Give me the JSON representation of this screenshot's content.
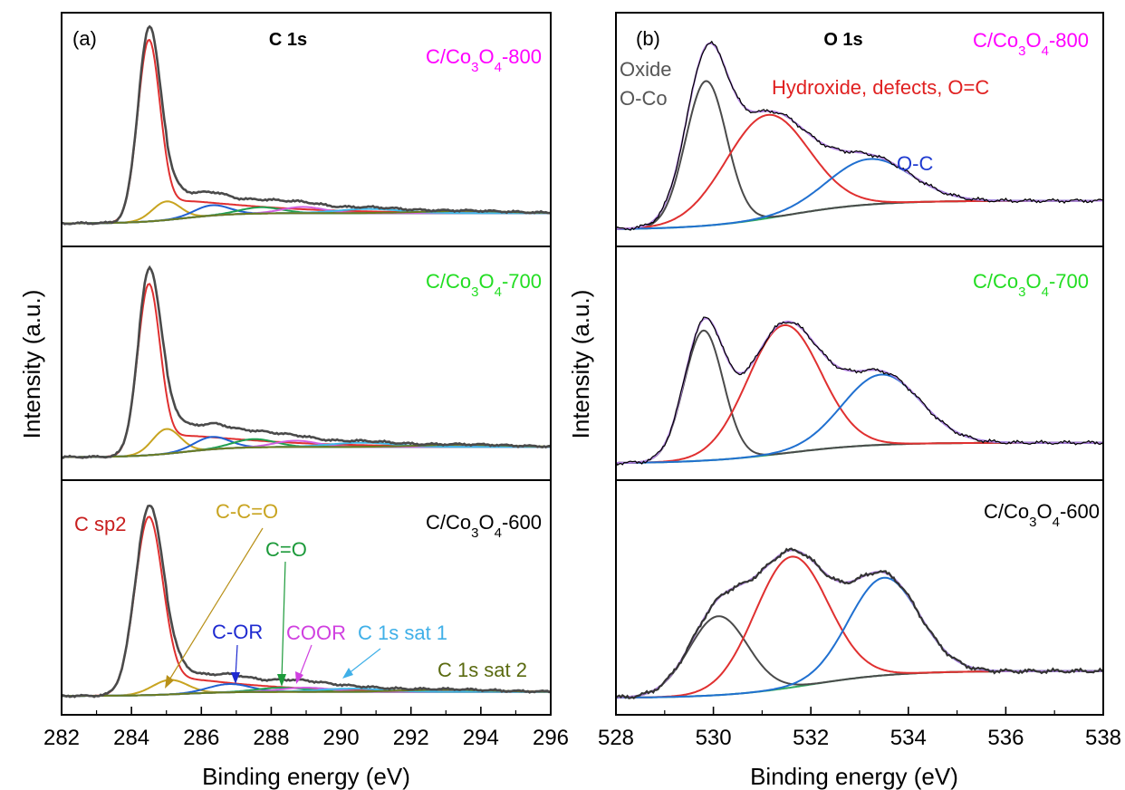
{
  "figure": {
    "panel_a": {
      "label": "(a)",
      "title": "C 1s",
      "xlabel": "Binding energy (eV)",
      "ylabel": "Intensity (a.u.)",
      "xticks": [
        "282",
        "284",
        "286",
        "288",
        "290",
        "292",
        "294",
        "296"
      ],
      "samples": [
        {
          "base": "C/Co",
          "s1": "3",
          "mid": "O",
          "s2": "4",
          "tail": "-800",
          "color": "#ff00ff"
        },
        {
          "base": "C/Co",
          "s1": "3",
          "mid": "O",
          "s2": "4",
          "tail": "-700",
          "color": "#22dd22"
        },
        {
          "base": "C/Co",
          "s1": "3",
          "mid": "O",
          "s2": "4",
          "tail": "-600",
          "color": "#000000"
        }
      ],
      "annotations": {
        "c_sp2": "C sp2",
        "c_c_o": "C-C=O",
        "c_o": "C=O",
        "c_or": "C-OR",
        "coor": "COOR",
        "sat1": "C 1s sat 1",
        "sat2": "C 1s sat 2"
      }
    },
    "panel_b": {
      "label": "(b)",
      "title": "O 1s",
      "xlabel": "Binding energy (eV)",
      "ylabel": "Intensity (a.u.)",
      "xticks": [
        "528",
        "530",
        "532",
        "534",
        "536",
        "538"
      ],
      "samples": [
        {
          "base": "C/Co",
          "s1": "3",
          "mid": "O",
          "s2": "4",
          "tail": "-800",
          "color": "#ff00ff"
        },
        {
          "base": "C/Co",
          "s1": "3",
          "mid": "O",
          "s2": "4",
          "tail": "-700",
          "color": "#22dd22"
        },
        {
          "base": "C/Co",
          "s1": "3",
          "mid": "O",
          "s2": "4",
          "tail": "-600",
          "color": "#000000"
        }
      ],
      "annotations": {
        "oxide": "Oxide",
        "o_co": "O-Co",
        "hydroxide": "Hydroxide, defects, O=C",
        "o_c": "O-C"
      }
    }
  },
  "colors": {
    "envelope": "#4a4a4a",
    "c_sp2": "#e03030",
    "c_c_o": "#c8a420",
    "c_or": "#2060d0",
    "c_o": "#20a050",
    "coor": "#d060e0",
    "sat1": "#40b8e8",
    "sat2": "#6a7a20",
    "background": "#6a7a20",
    "o_oxide": "#4a4a4a",
    "o_hydroxide": "#e03030",
    "o_oc": "#2070d0",
    "o_background": "#30a860",
    "o_fit_envelope": "#b080e0",
    "o_raw": "#000000"
  },
  "chart_data": [
    {
      "type": "line",
      "title": "C 1s",
      "xlabel": "Binding energy (eV)",
      "ylabel": "Intensity (a.u.)",
      "xlim": [
        282,
        296
      ],
      "xticks": [
        282,
        284,
        286,
        288,
        290,
        292,
        294,
        296
      ],
      "panels": [
        {
          "sample": "C/Co3O4-800",
          "baseline": [
            0.05,
            0.1
          ],
          "components": [
            {
              "name": "C sp2",
              "center": 284.5,
              "height": 0.88,
              "width": 0.32,
              "tail": 0.16
            },
            {
              "name": "C-C=O",
              "center": 285.0,
              "height": 0.09,
              "width": 0.4
            },
            {
              "name": "C-OR",
              "center": 286.3,
              "height": 0.05,
              "width": 0.5
            },
            {
              "name": "C=O",
              "center": 287.7,
              "height": 0.03,
              "width": 0.6
            },
            {
              "name": "COOR",
              "center": 288.9,
              "height": 0.03,
              "width": 0.6
            },
            {
              "name": "C 1s sat 1",
              "center": 290.8,
              "height": 0.02,
              "width": 0.9
            },
            {
              "name": "C 1s sat 2",
              "center": 293.5,
              "height": 0.01,
              "width": 1.2
            }
          ]
        },
        {
          "sample": "C/Co3O4-700",
          "baseline": [
            0.05,
            0.1
          ],
          "components": [
            {
              "name": "C sp2",
              "center": 284.5,
              "height": 0.83,
              "width": 0.32,
              "tail": 0.16
            },
            {
              "name": "C-C=O",
              "center": 285.0,
              "height": 0.12,
              "width": 0.4
            },
            {
              "name": "C-OR",
              "center": 286.3,
              "height": 0.06,
              "width": 0.5
            },
            {
              "name": "C=O",
              "center": 287.5,
              "height": 0.04,
              "width": 0.6
            },
            {
              "name": "COOR",
              "center": 288.7,
              "height": 0.03,
              "width": 0.6
            },
            {
              "name": "C 1s sat 1",
              "center": 290.6,
              "height": 0.02,
              "width": 0.9
            },
            {
              "name": "C 1s sat 2",
              "center": 293.5,
              "height": 0.01,
              "width": 1.2
            }
          ]
        },
        {
          "sample": "C/Co3O4-600",
          "baseline": [
            0.03,
            0.05
          ],
          "components": [
            {
              "name": "C sp2",
              "center": 284.5,
              "height": 0.86,
              "width": 0.4,
              "tail": 0.15
            },
            {
              "name": "C-C=O",
              "center": 285.1,
              "height": 0.07,
              "width": 0.5
            },
            {
              "name": "C-OR",
              "center": 286.8,
              "height": 0.04,
              "width": 0.6
            },
            {
              "name": "C=O",
              "center": 288.3,
              "height": 0.02,
              "width": 0.7
            },
            {
              "name": "COOR",
              "center": 289.0,
              "height": 0.02,
              "width": 0.7
            },
            {
              "name": "C 1s sat 1",
              "center": 290.3,
              "height": 0.015,
              "width": 0.9
            },
            {
              "name": "C 1s sat 2",
              "center": 293.0,
              "height": 0.01,
              "width": 1.2
            }
          ]
        }
      ]
    },
    {
      "type": "line",
      "title": "O 1s",
      "xlabel": "Binding energy (eV)",
      "ylabel": "Intensity (a.u.)",
      "xlim": [
        528,
        538
      ],
      "xticks": [
        528,
        530,
        532,
        534,
        536,
        538
      ],
      "panels": [
        {
          "sample": "C/Co3O4-800",
          "background": {
            "start": 0.02,
            "end": 0.16,
            "center": 531.5,
            "width": 0.9
          },
          "components": [
            {
              "name": "Oxide O-Co",
              "center": 529.85,
              "height": 0.7,
              "width": 0.42
            },
            {
              "name": "Hydroxide, defects, O=C",
              "center": 531.1,
              "height": 0.5,
              "width": 0.85
            },
            {
              "name": "O-C",
              "center": 533.2,
              "height": 0.22,
              "width": 0.85
            }
          ]
        },
        {
          "sample": "C/Co3O4-700",
          "background": {
            "start": 0.02,
            "end": 0.12,
            "center": 531.5,
            "width": 0.9
          },
          "components": [
            {
              "name": "Oxide O-Co",
              "center": 529.8,
              "height": 0.63,
              "width": 0.4
            },
            {
              "name": "Hydroxide, defects, O=C",
              "center": 531.45,
              "height": 0.62,
              "width": 0.75
            },
            {
              "name": "O-C",
              "center": 533.45,
              "height": 0.34,
              "width": 0.8
            }
          ]
        },
        {
          "sample": "C/Co3O4-600",
          "background": {
            "start": 0.02,
            "end": 0.15,
            "center": 532.0,
            "width": 0.9
          },
          "components": [
            {
              "name": "Oxide O-Co",
              "center": 530.1,
              "height": 0.38,
              "width": 0.6
            },
            {
              "name": "Hydroxide, defects, O=C",
              "center": 531.6,
              "height": 0.63,
              "width": 0.75
            },
            {
              "name": "O-C",
              "center": 533.5,
              "height": 0.47,
              "width": 0.72
            }
          ]
        }
      ]
    }
  ]
}
